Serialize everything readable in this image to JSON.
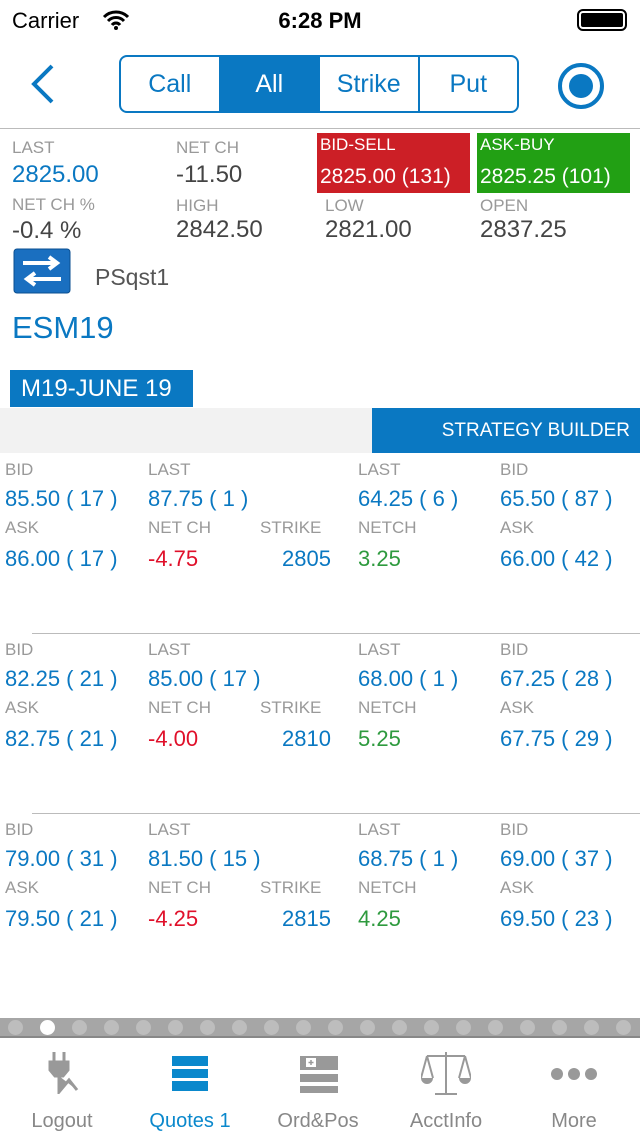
{
  "status": {
    "carrier": "Carrier",
    "time": "6:28 PM"
  },
  "nav": {
    "segments": [
      "Call",
      "All",
      "Strike",
      "Put"
    ],
    "active": 1
  },
  "summary": {
    "last_label": "LAST",
    "last": "2825.00",
    "netch_label": "NET CH",
    "netch": "-11.50",
    "bid_label": "BID-SELL",
    "bid": "2825.00 (131)",
    "ask_label": "ASK-BUY",
    "ask": "2825.25 (101)",
    "netchpct_label": "NET CH %",
    "netchpct": "-0.4 %",
    "high_label": "HIGH",
    "high": "2842.50",
    "low_label": "LOW",
    "low": "2821.00",
    "open_label": "OPEN",
    "open": "2837.25",
    "account": "PSqst1",
    "symbol": "ESM19",
    "expiry": "M19-JUNE 19"
  },
  "strategy_builder": "STRATEGY BUILDER",
  "labels": {
    "bid": "BID",
    "last": "LAST",
    "ask": "ASK",
    "netch": "NET CH",
    "strike": "STRIKE",
    "netch_put": "NETCH"
  },
  "rows": [
    {
      "call_bid": "85.50 ( 17 )",
      "call_last": "87.75 ( 1 )",
      "call_ask": "86.00 ( 17 )",
      "call_netch": "-4.75",
      "strike": "2805",
      "put_last": "64.25 ( 6 )",
      "put_bid": "65.50 ( 87 )",
      "put_netch": "3.25",
      "put_ask": "66.00 ( 42 )"
    },
    {
      "call_bid": "82.25 ( 21 )",
      "call_last": "85.00 ( 17 )",
      "call_ask": "82.75 ( 21 )",
      "call_netch": "-4.00",
      "strike": "2810",
      "put_last": "68.00 ( 1 )",
      "put_bid": "67.25 ( 28 )",
      "put_netch": "5.25",
      "put_ask": "67.75 ( 29 )"
    },
    {
      "call_bid": "79.00 ( 31 )",
      "call_last": "81.50 ( 15 )",
      "call_ask": "79.50 ( 21 )",
      "call_netch": "-4.25",
      "strike": "2815",
      "put_last": "68.75 ( 1 )",
      "put_bid": "69.00 ( 37 )",
      "put_netch": "4.25",
      "put_ask": "69.50 ( 23 )"
    }
  ],
  "pager": {
    "count": 20,
    "active": 1
  },
  "tabs": [
    {
      "label": "Logout",
      "icon": "plug-icon"
    },
    {
      "label": "Quotes 1",
      "icon": "list-icon"
    },
    {
      "label": "Ord&Pos",
      "icon": "orders-icon"
    },
    {
      "label": "AcctInfo",
      "icon": "scales-icon"
    },
    {
      "label": "More",
      "icon": "more-icon"
    }
  ],
  "active_tab": 1,
  "colors": {
    "accent": "#0a78c2",
    "bid": "#cc1f26",
    "ask": "#22a014",
    "down": "#e0102a",
    "up": "#2e9a3e"
  }
}
